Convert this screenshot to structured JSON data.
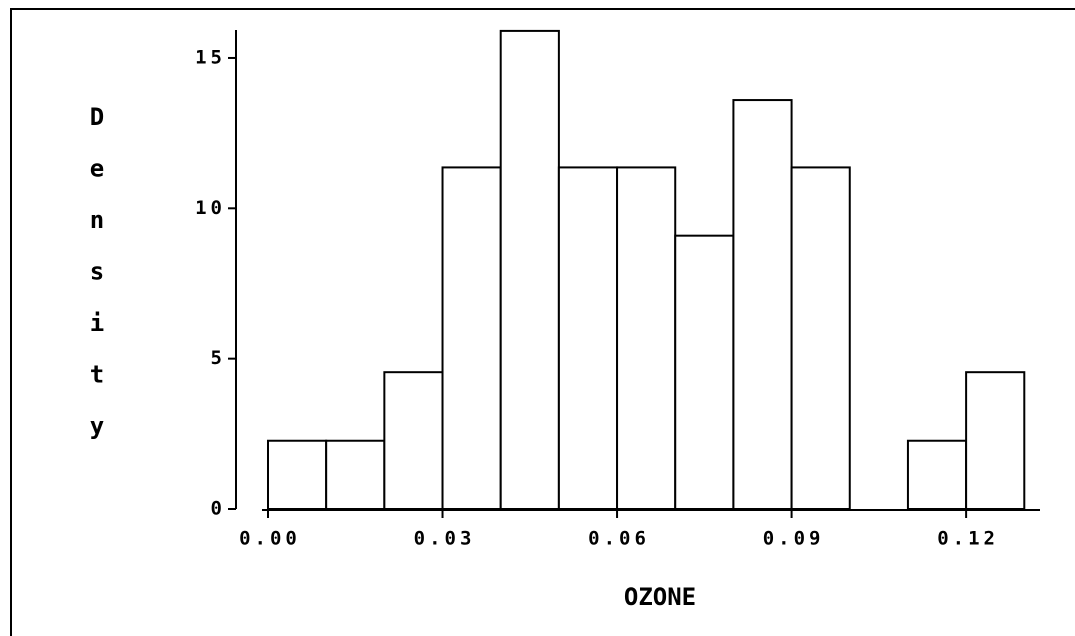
{
  "chart_data": {
    "type": "histogram",
    "x_label": "OZONE",
    "y_label": "Density",
    "bins": [
      0.0,
      0.01,
      0.02,
      0.03,
      0.04,
      0.05,
      0.06,
      0.07,
      0.08,
      0.09,
      0.1,
      0.11,
      0.12,
      0.13
    ],
    "values": [
      2.27,
      2.27,
      4.55,
      11.36,
      15.9,
      11.36,
      11.36,
      9.09,
      13.6,
      11.36,
      0,
      2.27,
      4.55
    ],
    "color": "#ffffff",
    "xlim": [
      -0.0055,
      0.1327
    ],
    "ylim": [
      0,
      15.93
    ],
    "xticks": [
      {
        "value": 0,
        "label": "0.00"
      },
      {
        "value": 0.03,
        "label": "0.03"
      },
      {
        "value": 0.06,
        "label": "0.06"
      },
      {
        "value": 0.09,
        "label": "0.09"
      },
      {
        "value": 0.12,
        "label": "0.12"
      }
    ],
    "yticks": [
      0,
      5,
      10,
      15
    ]
  }
}
